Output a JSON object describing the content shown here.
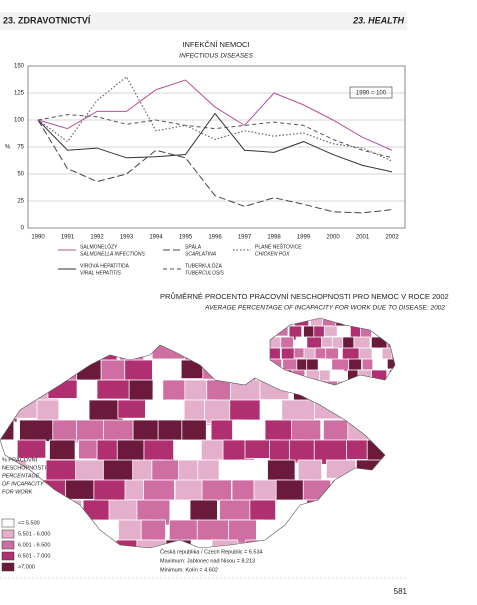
{
  "header": {
    "left": "23. ZDRAVOTNICTVÍ",
    "right": "23. HEALTH"
  },
  "chart_data": {
    "type": "line",
    "title": "INFEKČNÍ NEMOCI",
    "subtitle": "INFECTIOUS DISEASES",
    "y_label": "%",
    "annotation": "1990 = 100",
    "categories": [
      "1990",
      "1991",
      "1992",
      "1993",
      "1994",
      "1995",
      "1996",
      "1997",
      "1998",
      "1999",
      "2000",
      "2001",
      "2002"
    ],
    "ylim": [
      0,
      150
    ],
    "yticks": [
      0,
      25,
      50,
      75,
      100,
      125,
      150
    ],
    "grid": true,
    "series": [
      {
        "name": "SALMONELÓZY",
        "name_en": "SALMONELLA INFECTIONS",
        "color": "#b5529a",
        "dash": "none",
        "width": 1,
        "values": [
          100,
          92,
          108,
          108,
          128,
          137,
          112,
          95,
          125,
          114,
          100,
          84,
          72
        ]
      },
      {
        "name": "VIROVÁ HEPATITIDA",
        "name_en": "VIRAL HEPATITIS",
        "color": "#333333",
        "dash": "none",
        "width": 1,
        "values": [
          100,
          72,
          74,
          65,
          66,
          68,
          106,
          72,
          70,
          80,
          68,
          58,
          52
        ]
      },
      {
        "name": "SPÁLA",
        "name_en": "SCARLATINA",
        "color": "#444444",
        "dash": "7 3",
        "width": 1,
        "values": [
          100,
          55,
          43,
          50,
          72,
          65,
          30,
          20,
          28,
          22,
          15,
          14,
          17
        ]
      },
      {
        "name": "TUBERKULÓZA",
        "name_en": "TUBERCULOSIS",
        "color": "#555555",
        "dash": "4 3",
        "width": 1,
        "values": [
          100,
          105,
          103,
          96,
          100,
          95,
          92,
          95,
          98,
          95,
          82,
          72,
          65
        ]
      },
      {
        "name": "PLANÉ NEŠTOVICE",
        "name_en": "CHICKEN POX",
        "color": "#666666",
        "dash": "1.5 2",
        "width": 1.2,
        "values": [
          100,
          80,
          118,
          140,
          90,
          95,
          82,
          90,
          85,
          88,
          78,
          74,
          62
        ]
      }
    ]
  },
  "map": {
    "title": "PRŮMĚRNÉ PROCENTO PRACOVNÍ NESCHOPNOSTI PRO NEMOC V ROCE 2002",
    "subtitle": "AVERAGE PERCENTAGE OF INCAPACITY FOR WORK DUE TO DISEASE: 2002",
    "legend": {
      "title": [
        "% PRACOVNÍ",
        "NESCHOPNOSTI",
        "PERCENTAGE",
        "OF INCAPACITY",
        "FOR WORK"
      ],
      "items": [
        {
          "label": "<= 5.500",
          "color": "#ffffff"
        },
        {
          "label": "5.501 - 6.000",
          "color": "#e3afcb"
        },
        {
          "label": "6.001 - 6.500",
          "color": "#cf6ea2"
        },
        {
          "label": "6.501 - 7.000",
          "color": "#b02f70"
        },
        {
          "label": ">7.000",
          "color": "#6b1a3c"
        }
      ]
    },
    "notes": [
      "Česká republika / Czech Republic = 6.534",
      "Maximum: Jablonec nad Nisou = 8.213",
      "Minimum: Kolín = 4.602"
    ]
  },
  "page_number": "581"
}
